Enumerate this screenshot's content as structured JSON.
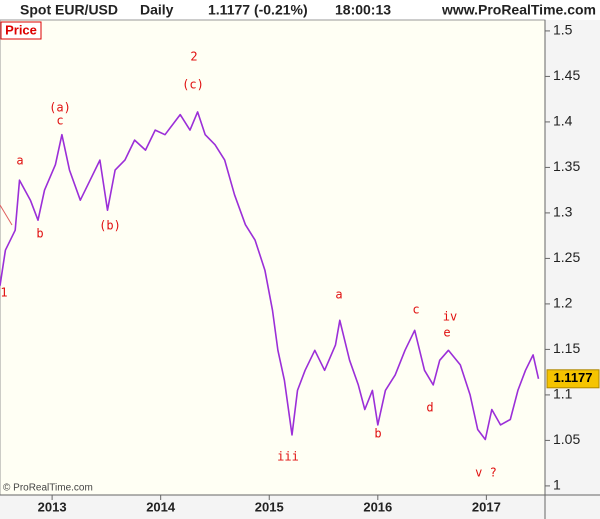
{
  "chart_data": {
    "type": "line",
    "header": [
      "Spot EUR/USD",
      "Daily",
      "1.1177 (-0.21%)",
      "18:00:13"
    ],
    "website": "www.ProRealTime.com",
    "copyright": "© ProRealTime.com",
    "x": [
      2012.52,
      2012.57,
      2012.66,
      2012.7,
      2012.8,
      2012.87,
      2012.93,
      2013.03,
      2013.09,
      2013.16,
      2013.26,
      2013.35,
      2013.44,
      2013.51,
      2013.58,
      2013.67,
      2013.76,
      2013.86,
      2013.95,
      2014.04,
      2014.18,
      2014.27,
      2014.34,
      2014.41,
      2014.5,
      2014.59,
      2014.68,
      2014.78,
      2014.87,
      2014.96,
      2015.03,
      2015.08,
      2015.14,
      2015.21,
      2015.26,
      2015.33,
      2015.42,
      2015.51,
      2015.61,
      2015.65,
      2015.74,
      2015.82,
      2015.88,
      2015.95,
      2016.0,
      2016.07,
      2016.16,
      2016.25,
      2016.34,
      2016.43,
      2016.51,
      2016.57,
      2016.65,
      2016.76,
      2016.85,
      2016.92,
      2016.99,
      2017.05,
      2017.13,
      2017.22,
      2017.29,
      2017.36,
      2017.43,
      2017.48
    ],
    "series": [
      {
        "name": "Price",
        "color": "#9b2fd8",
        "values": [
          1.22,
          1.259,
          1.281,
          1.336,
          1.314,
          1.292,
          1.325,
          1.353,
          1.386,
          1.347,
          1.314,
          1.336,
          1.358,
          1.303,
          1.347,
          1.358,
          1.38,
          1.369,
          1.391,
          1.386,
          1.408,
          1.391,
          1.411,
          1.386,
          1.375,
          1.358,
          1.32,
          1.287,
          1.27,
          1.237,
          1.193,
          1.149,
          1.116,
          1.056,
          1.105,
          1.127,
          1.149,
          1.127,
          1.155,
          1.182,
          1.138,
          1.111,
          1.084,
          1.105,
          1.067,
          1.105,
          1.122,
          1.149,
          1.171,
          1.127,
          1.111,
          1.138,
          1.149,
          1.133,
          1.1,
          1.062,
          1.051,
          1.084,
          1.067,
          1.073,
          1.105,
          1.127,
          1.144,
          1.1177
        ]
      }
    ],
    "xlim": [
      2012.52,
      2017.54
    ],
    "xticks": [
      2013,
      2014,
      2015,
      2016,
      2017
    ],
    "ylim": [
      0.99,
      1.512
    ],
    "yticks": [
      1,
      1.05,
      1.1,
      1.15,
      1.2,
      1.25,
      1.3,
      1.35,
      1.4,
      1.45,
      1.5
    ],
    "annotations": [
      "1",
      "a",
      "b",
      "(a)",
      "c",
      "(b)",
      "2",
      "(c)",
      "iii",
      "a",
      "b",
      "c",
      "d",
      "iv",
      "e",
      "v ?"
    ]
  }
}
